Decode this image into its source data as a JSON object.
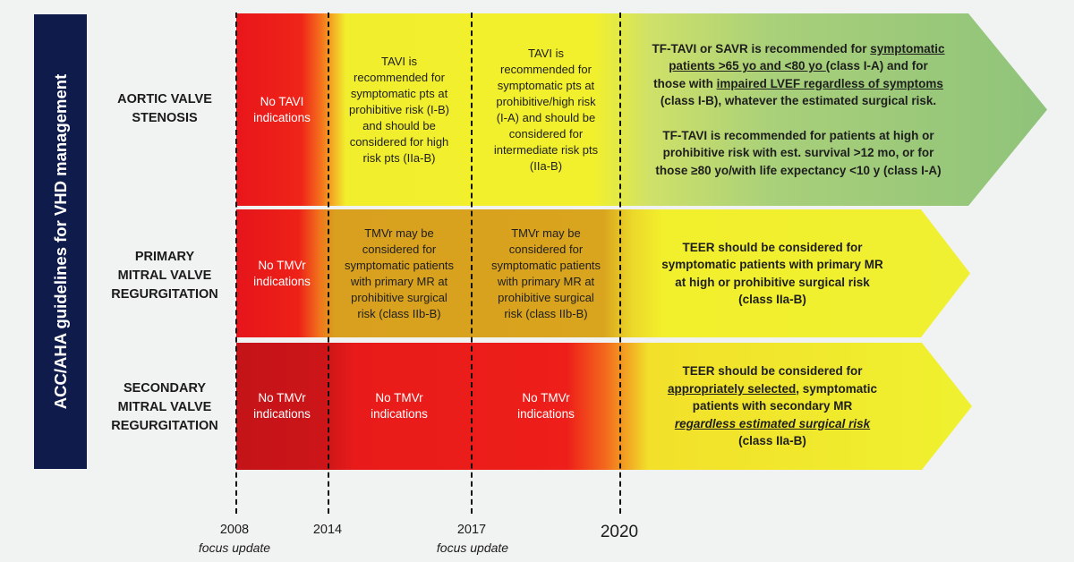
{
  "side_title": "ACC/AHA guidelines for VHD management",
  "rows": [
    {
      "id": "aortic",
      "label_lines": [
        "AORTIC VALVE",
        "STENOSIS"
      ],
      "cells": [
        {
          "lines": [
            "No TAVI",
            "indications"
          ]
        },
        {
          "lines": [
            "TAVI is",
            "recommended for",
            "symptomatic pts at",
            "prohibitive risk (I-B)",
            "and should be",
            "considered for high",
            "risk pts (IIa-B)"
          ]
        },
        {
          "lines": [
            "TAVI is",
            "recommended for",
            "symptomatic pts at",
            "prohibitive/high risk",
            "(I-A) and should be",
            "considered for",
            "intermediate risk pts",
            "(IIa-B)"
          ]
        }
      ],
      "arrow_lines": [
        [
          {
            "t": "TF-TAVI or SAVR is recommended for "
          },
          {
            "t": "symptomatic",
            "s": "u"
          }
        ],
        [
          {
            "t": "patients >65 yo and <80 yo ",
            "s": "u"
          },
          {
            "t": "(class I-A) and for"
          }
        ],
        [
          {
            "t": "those with "
          },
          {
            "t": "impaired LVEF regardless of symptoms",
            "s": "u"
          }
        ],
        [
          {
            "t": "(class I-B), whatever the estimated surgical risk."
          }
        ],
        [
          {
            "t": " "
          }
        ],
        [
          {
            "t": "TF-TAVI is recommended for patients at high or"
          }
        ],
        [
          {
            "t": "prohibitive risk with est. survival >12 mo, or for"
          }
        ],
        [
          {
            "t": "those ≥80 yo/with life expectancy <10 y (class I-A)"
          }
        ]
      ]
    },
    {
      "id": "primary",
      "label_lines": [
        "PRIMARY",
        "MITRAL VALVE",
        "REGURGITATION"
      ],
      "cells": [
        {
          "lines": [
            "No TMVr",
            "indications"
          ]
        },
        {
          "lines": [
            "TMVr may be",
            "considered for",
            "symptomatic patients",
            "with primary MR at",
            "prohibitive surgical",
            "risk (class IIb-B)"
          ]
        },
        {
          "lines": [
            "TMVr may be",
            "considered for",
            "symptomatic patients",
            "with primary MR at",
            "prohibitive surgical",
            "risk (class IIb-B)"
          ]
        }
      ],
      "arrow_lines": [
        [
          {
            "t": "TEER should be considered for"
          }
        ],
        [
          {
            "t": "symptomatic patients with primary MR"
          }
        ],
        [
          {
            "t": "at high or prohibitive surgical risk"
          }
        ],
        [
          {
            "t": "(class IIa-B)"
          }
        ]
      ]
    },
    {
      "id": "secondary",
      "label_lines": [
        "SECONDARY",
        "MITRAL VALVE",
        "REGURGITATION"
      ],
      "cells": [
        {
          "lines": [
            "No TMVr",
            "indications"
          ]
        },
        {
          "lines": [
            "No TMVr",
            "indications"
          ]
        },
        {
          "lines": [
            "No TMVr",
            "indications"
          ]
        }
      ],
      "arrow_lines": [
        [
          {
            "t": "TEER should be considered for"
          }
        ],
        [
          {
            "t": "appropriately selected",
            "s": "u"
          },
          {
            "t": ", symptomatic"
          }
        ],
        [
          {
            "t": "patients with secondary MR"
          }
        ],
        [
          {
            "t": "regardless estimated surgical risk",
            "s": "ui"
          }
        ],
        [
          {
            "t": "(class IIa-B)"
          }
        ]
      ]
    }
  ],
  "timeline": [
    {
      "year": "2008",
      "note": "focus update"
    },
    {
      "year": "2014",
      "note": ""
    },
    {
      "year": "2017",
      "note": "focus update"
    },
    {
      "year": "2020",
      "note": ""
    }
  ],
  "colors": {
    "panel": "#0f1b4a",
    "red_dark": "#c71418",
    "red": "#ef1e1a",
    "orange": "#f58a1e",
    "yellow": "#f2ef2c",
    "amber": "#d8a01e",
    "green": "#9ccc7c"
  }
}
